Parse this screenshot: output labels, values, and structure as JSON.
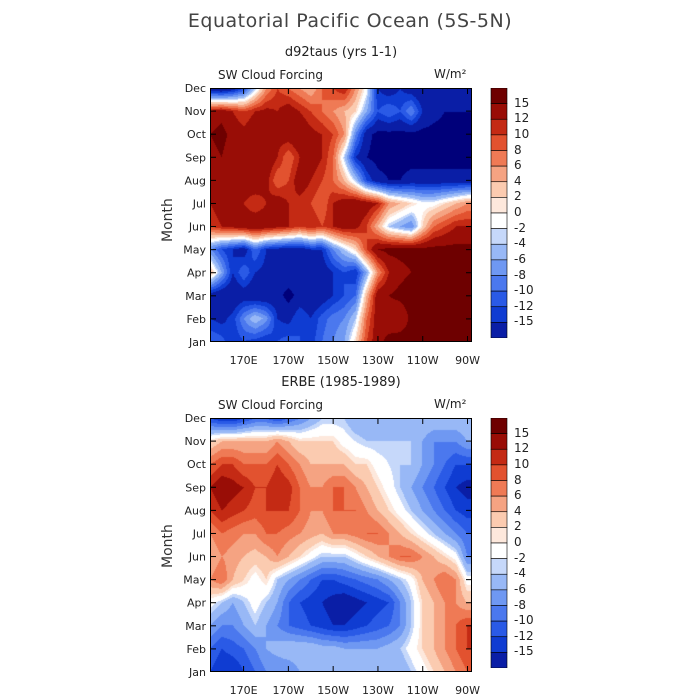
{
  "title": "Equatorial Pacific Ocean (5S-5N)",
  "colors": [
    "#00007a",
    "#0a1ea6",
    "#0f3cd2",
    "#2a5ae6",
    "#4b78ee",
    "#6f98f2",
    "#98b8f6",
    "#c6d8fa",
    "#ffffff",
    "#fde8dc",
    "#fbcbb0",
    "#f5a382",
    "#ef7a55",
    "#e2522f",
    "#c42a14",
    "#990d06",
    "#6e0000"
  ],
  "chart_data": [
    {
      "type": "heatmap",
      "title": "d92taus (yrs 1-1)",
      "left_label": "SW Cloud Forcing",
      "units": "W/m²",
      "ylabel": "Month",
      "x_ticks": [
        "170E",
        "170W",
        "150W",
        "130W",
        "110W",
        "90W"
      ],
      "y_ticks": [
        "Jan",
        "Feb",
        "Mar",
        "Apr",
        "May",
        "Jun",
        "Jul",
        "Aug",
        "Sep",
        "Oct",
        "Nov",
        "Dec"
      ],
      "colorbar_labels": [
        "15",
        "12",
        "10",
        "8",
        "6",
        "4",
        "2",
        "0",
        "-2",
        "-4",
        "-6",
        "-8",
        "-10",
        "-12",
        "-15"
      ],
      "x": [
        155,
        160,
        165,
        170,
        175,
        180,
        185,
        190,
        195,
        200,
        205,
        210,
        215,
        220,
        225,
        230,
        235,
        240,
        245,
        250,
        255,
        260,
        265,
        270
      ],
      "y": [
        "Jan",
        "Feb",
        "Mar",
        "Apr",
        "May",
        "Jun",
        "Jul",
        "Aug",
        "Sep",
        "Oct",
        "Nov",
        "Dec"
      ],
      "z": [
        [
          -8,
          -9,
          -12,
          -10,
          -11,
          -12,
          -10,
          -9,
          -10,
          -11,
          -8,
          -6,
          -4,
          2,
          10,
          14,
          16,
          17,
          17,
          17,
          16,
          16,
          16,
          16
        ],
        [
          -12,
          -13,
          -11,
          -6,
          -2,
          -5,
          -12,
          -13,
          -10,
          -12,
          -9,
          -7,
          -6,
          -2,
          8,
          14,
          13,
          12,
          16,
          17,
          16,
          16,
          16,
          16
        ],
        [
          -14,
          -15,
          -15,
          -14,
          -15,
          -15,
          -14,
          -16,
          -14,
          -15,
          -14,
          -12,
          -10,
          -8,
          4,
          14,
          15,
          16,
          17,
          17,
          16,
          16,
          16,
          16
        ],
        [
          4,
          -4,
          -12,
          -8,
          -12,
          -13,
          -14,
          -13,
          -13,
          -14,
          -14,
          -12,
          -10,
          -12,
          -4,
          6,
          12,
          14,
          15,
          16,
          16,
          16,
          16,
          16
        ],
        [
          -6,
          -10,
          -12,
          -14,
          -8,
          -12,
          -13,
          -14,
          -14,
          -12,
          -12,
          -6,
          -2,
          2,
          10,
          15,
          16,
          16,
          16,
          16,
          16,
          16,
          16,
          16
        ],
        [
          10,
          12,
          13,
          14,
          15,
          14,
          13,
          12,
          10,
          12,
          10,
          12,
          14,
          13,
          10,
          4,
          -2,
          -4,
          -6,
          2,
          8,
          10,
          12,
          12
        ],
        [
          12,
          14,
          13,
          12,
          10,
          12,
          14,
          12,
          11,
          10,
          8,
          12,
          14,
          15,
          14,
          12,
          6,
          4,
          2,
          0,
          0,
          2,
          4,
          6
        ],
        [
          14,
          12,
          13,
          14,
          15,
          13,
          8,
          10,
          14,
          12,
          10,
          8,
          4,
          -2,
          -10,
          -14,
          -15,
          -15,
          -14,
          -14,
          -14,
          -14,
          -14,
          -14
        ],
        [
          14,
          15,
          13,
          12,
          14,
          15,
          12,
          8,
          12,
          14,
          12,
          8,
          -2,
          -12,
          -15,
          -16,
          -16,
          -16,
          -16,
          -16,
          -16,
          -16,
          -16,
          -16
        ],
        [
          15,
          16,
          14,
          13,
          15,
          14,
          13,
          14,
          15,
          13,
          12,
          10,
          6,
          -6,
          -14,
          -16,
          -16,
          -16,
          -16,
          -16,
          -16,
          -16,
          -16,
          -16
        ],
        [
          13,
          14,
          12,
          10,
          12,
          13,
          12,
          14,
          12,
          10,
          8,
          6,
          4,
          2,
          -4,
          -10,
          -8,
          -10,
          -6,
          -12,
          -14,
          -15,
          -15,
          -15
        ],
        [
          -15,
          -16,
          -14,
          -10,
          -2,
          6,
          10,
          8,
          6,
          4,
          8,
          10,
          12,
          6,
          0,
          -12,
          -14,
          -12,
          -14,
          -15,
          -15,
          -15,
          -15,
          -15
        ]
      ]
    },
    {
      "type": "heatmap",
      "title": "ERBE (1985-1989)",
      "left_label": "SW Cloud Forcing",
      "units": "W/m²",
      "ylabel": "Month",
      "x_ticks": [
        "170E",
        "170W",
        "150W",
        "130W",
        "110W",
        "90W"
      ],
      "y_ticks": [
        "Jan",
        "Feb",
        "Mar",
        "Apr",
        "May",
        "Jun",
        "Jul",
        "Aug",
        "Sep",
        "Oct",
        "Nov",
        "Dec"
      ],
      "colorbar_labels": [
        "15",
        "12",
        "10",
        "8",
        "6",
        "4",
        "2",
        "0",
        "-2",
        "-4",
        "-6",
        "-8",
        "-10",
        "-12",
        "-15"
      ],
      "x": [
        155,
        160,
        165,
        170,
        175,
        180,
        185,
        190,
        195,
        200,
        205,
        210,
        215,
        220,
        225,
        230,
        235,
        240,
        245,
        250,
        255,
        260,
        265,
        270
      ],
      "y": [
        "Jan",
        "Feb",
        "Mar",
        "Apr",
        "May",
        "Jun",
        "Jul",
        "Aug",
        "Sep",
        "Oct",
        "Nov",
        "Dec"
      ],
      "z": [
        [
          -10,
          -12,
          -12,
          -10,
          -8,
          -6,
          -6,
          -6,
          -4,
          -4,
          -4,
          -4,
          -4,
          -2,
          -2,
          -4,
          -4,
          -4,
          -2,
          0,
          2,
          4,
          6,
          8
        ],
        [
          -8,
          -10,
          -9,
          -8,
          -6,
          -4,
          -3,
          -2,
          -2,
          -2,
          -3,
          -3,
          -4,
          -4,
          -4,
          -4,
          -3,
          -2,
          0,
          2,
          4,
          6,
          8,
          10
        ],
        [
          -4,
          -6,
          -6,
          -4,
          -2,
          -4,
          -6,
          -8,
          -9,
          -10,
          -11,
          -12,
          -12,
          -11,
          -10,
          -9,
          -8,
          -6,
          -2,
          2,
          4,
          6,
          8,
          10
        ],
        [
          0,
          -2,
          -4,
          -2,
          0,
          -2,
          -4,
          -8,
          -10,
          -11,
          -12,
          -13,
          -14,
          -13,
          -12,
          -11,
          -10,
          -6,
          -2,
          2,
          4,
          6,
          6,
          4
        ],
        [
          6,
          8,
          4,
          2,
          0,
          2,
          -2,
          -4,
          -6,
          -8,
          -10,
          -10,
          -9,
          -8,
          -7,
          -6,
          -4,
          -2,
          0,
          4,
          6,
          8,
          6,
          0
        ],
        [
          4,
          6,
          5,
          4,
          3,
          4,
          6,
          4,
          2,
          0,
          -2,
          -2,
          -2,
          0,
          2,
          4,
          6,
          8,
          8,
          6,
          4,
          2,
          0,
          -6
        ],
        [
          6,
          8,
          7,
          6,
          6,
          8,
          8,
          7,
          6,
          5,
          4,
          6,
          6,
          7,
          8,
          8,
          6,
          4,
          2,
          0,
          -2,
          -4,
          -6,
          -8
        ],
        [
          10,
          12,
          11,
          10,
          9,
          10,
          10,
          10,
          8,
          6,
          6,
          8,
          8,
          8,
          6,
          4,
          2,
          0,
          -2,
          -4,
          -6,
          -8,
          -10,
          -11
        ],
        [
          12,
          14,
          13,
          12,
          10,
          10,
          12,
          11,
          8,
          6,
          6,
          8,
          8,
          6,
          4,
          2,
          0,
          -2,
          -4,
          -6,
          -8,
          -10,
          -12,
          -13
        ],
        [
          8,
          10,
          10,
          8,
          8,
          8,
          10,
          8,
          6,
          4,
          4,
          4,
          4,
          2,
          2,
          0,
          -1,
          -2,
          -2,
          -4,
          -6,
          -8,
          -10,
          -10
        ],
        [
          2,
          4,
          4,
          4,
          4,
          4,
          6,
          4,
          2,
          2,
          2,
          2,
          0,
          -1,
          -2,
          -2,
          -2,
          -2,
          -2,
          -4,
          -6,
          -6,
          -6,
          -4
        ],
        [
          -10,
          -12,
          -12,
          -10,
          -8,
          -8,
          -10,
          -8,
          -6,
          -4,
          -2,
          -2,
          -2,
          -4,
          -4,
          -4,
          -4,
          -4,
          -2,
          -2,
          -2,
          -2,
          -2,
          -2
        ]
      ]
    }
  ]
}
